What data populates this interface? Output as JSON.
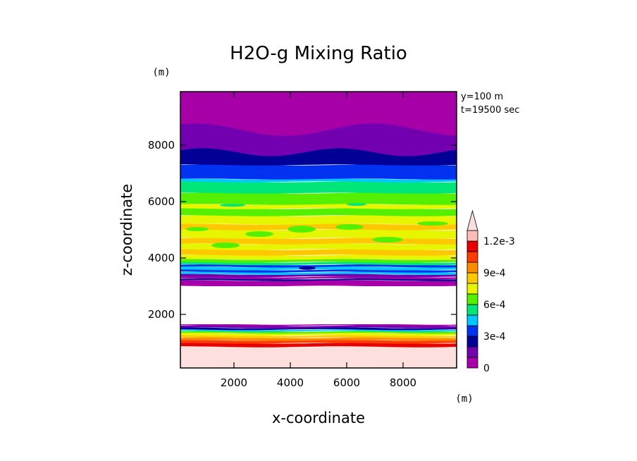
{
  "chart_data": {
    "type": "heatmap",
    "title": "H2O-g Mixing Ratio",
    "xlabel": "x-coordinate",
    "ylabel": "z-coordinate",
    "x_unit": "(m)",
    "y_unit": "(m)",
    "info": [
      "y=100 m",
      "t=19500 sec"
    ],
    "xlim": [
      100,
      9900
    ],
    "ylim": [
      100,
      9900
    ],
    "x_ticks": [
      2000,
      4000,
      6000,
      8000
    ],
    "y_ticks": [
      2000,
      4000,
      6000,
      8000
    ],
    "x_tick_labels": [
      "2000",
      "4000",
      "6000",
      "8000"
    ],
    "y_tick_labels": [
      "2000",
      "4000",
      "6000",
      "8000"
    ],
    "colorbar": {
      "levels": [
        0,
        0.0001,
        0.0002,
        0.0003,
        0.0004,
        0.0005,
        0.0006,
        0.0007,
        0.0008,
        0.0009,
        0.001,
        0.0011,
        0.0012
      ],
      "colors": [
        "#a800a8",
        "#7200b0",
        "#000096",
        "#0032f0",
        "#00c8ff",
        "#00e678",
        "#55f000",
        "#e6f500",
        "#ffc800",
        "#ff8c00",
        "#ff3c00",
        "#e60000",
        "#ffbcb8"
      ],
      "overflow_color": "#fde0dd",
      "tick_values": [
        0,
        0.0003,
        0.0006,
        0.0009,
        0.0012
      ],
      "tick_labels": [
        "0",
        "3e-4",
        "6e-4",
        "9e-4",
        "1.2e-3"
      ]
    },
    "bands": [
      {
        "z0": 100,
        "z1": 850,
        "value": 0.0013
      },
      {
        "z0": 850,
        "z1": 980,
        "value": 0.00115
      },
      {
        "z0": 980,
        "z1": 1080,
        "value": 0.00105
      },
      {
        "z0": 1080,
        "z1": 1170,
        "value": 0.00095
      },
      {
        "z0": 1170,
        "z1": 1250,
        "value": 0.00085
      },
      {
        "z0": 1250,
        "z1": 1330,
        "value": 0.00075
      },
      {
        "z0": 1330,
        "z1": 1400,
        "value": 0.00065
      },
      {
        "z0": 1400,
        "z1": 1460,
        "value": 0.00045
      },
      {
        "z0": 1460,
        "z1": 1520,
        "value": 0.00025
      },
      {
        "z0": 1520,
        "z1": 1600,
        "value": 0.00015
      },
      {
        "z0": 1600,
        "z1": 1650,
        "value": 5e-05
      },
      {
        "z0": 3000,
        "z1": 3200,
        "value": 5e-05
      },
      {
        "z0": 3200,
        "z1": 3260,
        "value": 0.00025
      },
      {
        "z0": 3260,
        "z1": 3330,
        "value": 5e-05
      },
      {
        "z0": 3330,
        "z1": 3420,
        "value": 0.00015
      },
      {
        "z0": 3420,
        "z1": 3500,
        "value": 0.00045
      },
      {
        "z0": 3500,
        "z1": 3580,
        "value": 0.00035
      },
      {
        "z0": 3580,
        "z1": 3680,
        "value": 0.00045
      },
      {
        "z0": 3680,
        "z1": 3760,
        "value": 0.00035
      },
      {
        "z0": 3760,
        "z1": 3850,
        "value": 0.00055
      },
      {
        "z0": 3850,
        "z1": 3950,
        "value": 0.00065
      },
      {
        "z0": 3950,
        "z1": 4100,
        "value": 0.00075
      },
      {
        "z0": 4100,
        "z1": 4300,
        "value": 0.00085
      },
      {
        "z0": 4300,
        "z1": 4500,
        "value": 0.00075
      },
      {
        "z0": 4500,
        "z1": 4700,
        "value": 0.00085
      },
      {
        "z0": 4700,
        "z1": 5000,
        "value": 0.00075
      },
      {
        "z0": 5000,
        "z1": 5200,
        "value": 0.00085
      },
      {
        "z0": 5200,
        "z1": 5500,
        "value": 0.00075
      },
      {
        "z0": 5500,
        "z1": 5750,
        "value": 0.00065
      },
      {
        "z0": 5750,
        "z1": 5900,
        "value": 0.00075
      },
      {
        "z0": 5900,
        "z1": 6300,
        "value": 0.00065
      },
      {
        "z0": 6300,
        "z1": 6700,
        "value": 0.00055
      },
      {
        "z0": 6700,
        "z1": 6800,
        "value": 0.00045
      },
      {
        "z0": 6800,
        "z1": 7300,
        "value": 0.00035
      },
      {
        "z0": 7300,
        "z1": 8000,
        "value": 0.00025
      },
      {
        "z0": 8000,
        "z1": 8500,
        "value": 0.00015
      },
      {
        "z0": 8500,
        "z1": 9900,
        "value": 5e-05
      }
    ],
    "patches": [
      {
        "x0": 1200,
        "x1": 2200,
        "z0": 4350,
        "z1": 4550,
        "value": 0.00065
      },
      {
        "x0": 2400,
        "x1": 3400,
        "z0": 4750,
        "z1": 4950,
        "value": 0.00065
      },
      {
        "x0": 3900,
        "x1": 4900,
        "z0": 4900,
        "z1": 5150,
        "value": 0.00065
      },
      {
        "x0": 5600,
        "x1": 6600,
        "z0": 5000,
        "z1": 5200,
        "value": 0.00065
      },
      {
        "x0": 6900,
        "x1": 8000,
        "z0": 4550,
        "z1": 4750,
        "value": 0.00065
      },
      {
        "x0": 300,
        "x1": 1100,
        "z0": 4950,
        "z1": 5100,
        "value": 0.00065
      },
      {
        "x0": 8500,
        "x1": 9600,
        "z0": 5150,
        "z1": 5300,
        "value": 0.00065
      },
      {
        "x0": 4300,
        "x1": 4900,
        "z0": 3580,
        "z1": 3700,
        "value": 0.00025
      },
      {
        "x0": 6000,
        "x1": 6700,
        "z0": 5850,
        "z1": 5950,
        "value": 0.00055
      },
      {
        "x0": 1500,
        "x1": 2400,
        "z0": 5820,
        "z1": 5920,
        "value": 0.00055
      }
    ],
    "fronts": [
      {
        "z": 7750,
        "amp": 140,
        "k": 1.3,
        "phase": 0.4,
        "value": 0.00015
      },
      {
        "z": 8550,
        "amp": 220,
        "k": 1.0,
        "phase": 0.9,
        "value": 5e-05
      }
    ],
    "blank_region": {
      "z0": 1650,
      "z1": 3000
    }
  }
}
